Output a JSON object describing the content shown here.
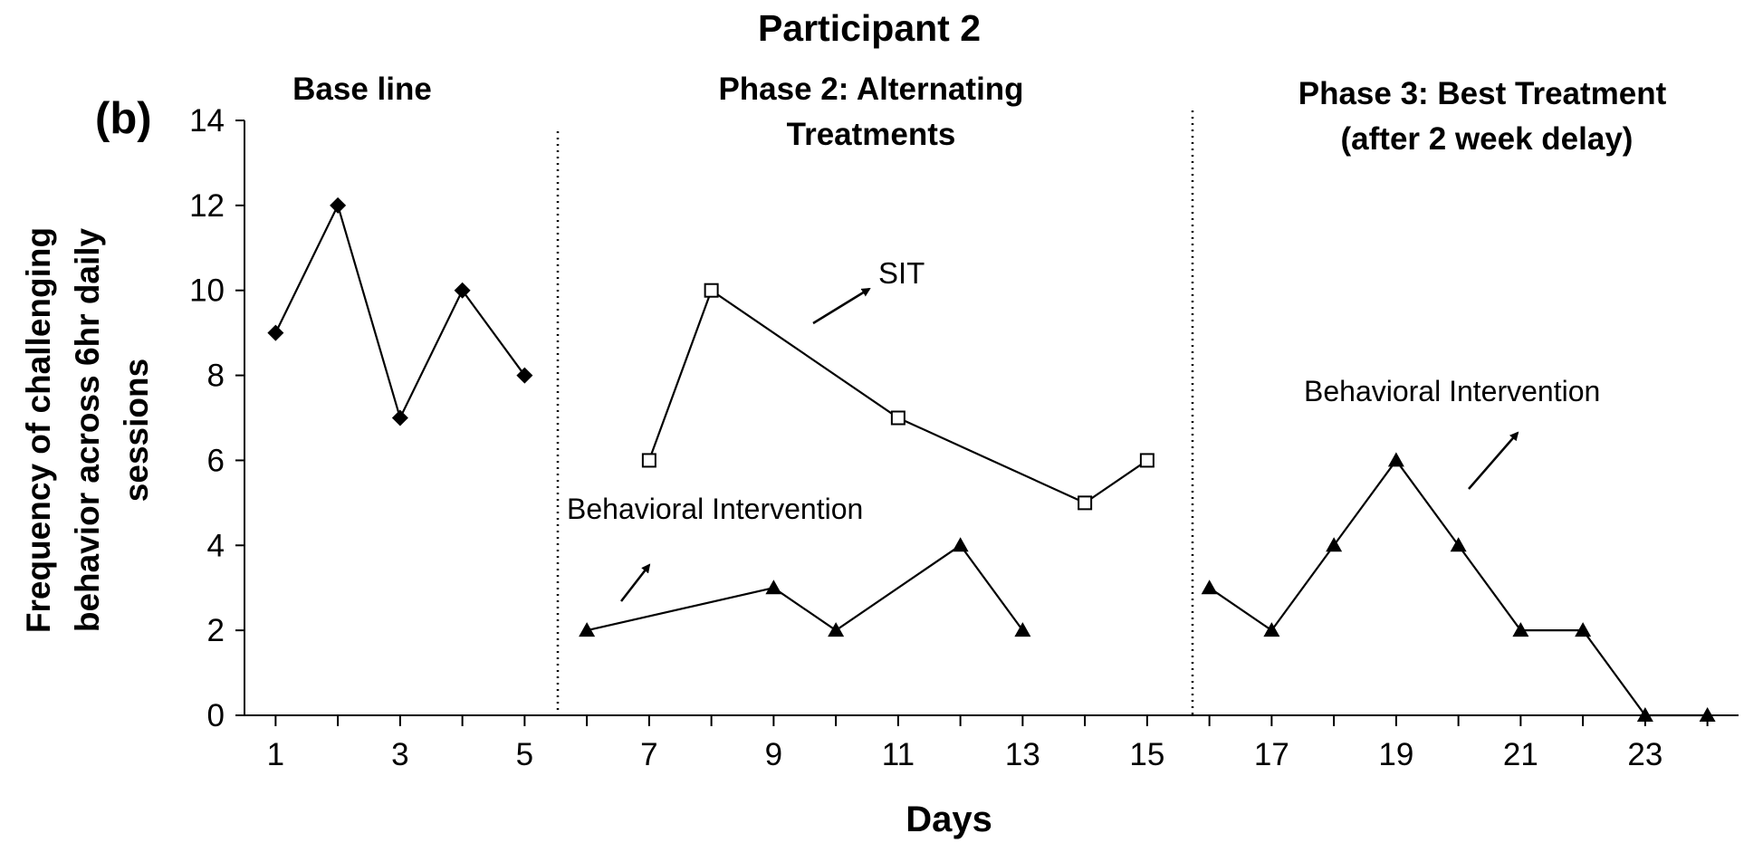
{
  "chart_data": {
    "type": "line",
    "title": "Participant 2",
    "panel_label": "(b)",
    "xlabel": "Days",
    "ylabel": "Frequency of challenging behavior across 6hr daily sessions",
    "ylabel_lines": [
      "Frequency of challenging",
      "behavior across 6hr daily",
      "sessions"
    ],
    "xlim": [
      0.5,
      24.5
    ],
    "ylim": [
      0,
      14
    ],
    "yticks": [
      0,
      2,
      4,
      6,
      8,
      10,
      12,
      14
    ],
    "xticks_labeled": [
      1,
      3,
      5,
      7,
      9,
      11,
      13,
      15,
      17,
      19,
      21,
      23
    ],
    "grid": false,
    "phases": [
      {
        "lines": [
          "Base line"
        ]
      },
      {
        "lines": [
          "Phase 2: Alternating",
          "Treatments"
        ]
      },
      {
        "lines": [
          "Phase 3: Best Treatment",
          "(after 2 week delay)"
        ]
      }
    ],
    "phase_change_after_day": [
      5.5,
      15.5
    ],
    "series": [
      {
        "name": "",
        "marker": "diamond",
        "x": [
          1,
          2,
          3,
          4,
          5
        ],
        "y": [
          9,
          12,
          7,
          10,
          8
        ]
      },
      {
        "name": "SIT",
        "marker": "open-square",
        "x": [
          7,
          8,
          11,
          14,
          15
        ],
        "y": [
          6,
          10,
          7,
          5,
          6
        ]
      },
      {
        "name": "Behavioral Intervention",
        "marker": "triangle",
        "x": [
          6,
          9,
          10,
          12,
          13
        ],
        "y": [
          2,
          3,
          2,
          4,
          2
        ]
      },
      {
        "name": "Behavioral Intervention",
        "marker": "triangle",
        "x": [
          16,
          17,
          18,
          19,
          20,
          21,
          22,
          23,
          24
        ],
        "y": [
          3,
          2,
          4,
          6,
          4,
          2,
          2,
          0,
          0
        ]
      }
    ],
    "annotations": [
      {
        "text": "SIT"
      },
      {
        "text": "Behavioral Intervention"
      },
      {
        "text": "Behavioral Intervention"
      }
    ]
  }
}
